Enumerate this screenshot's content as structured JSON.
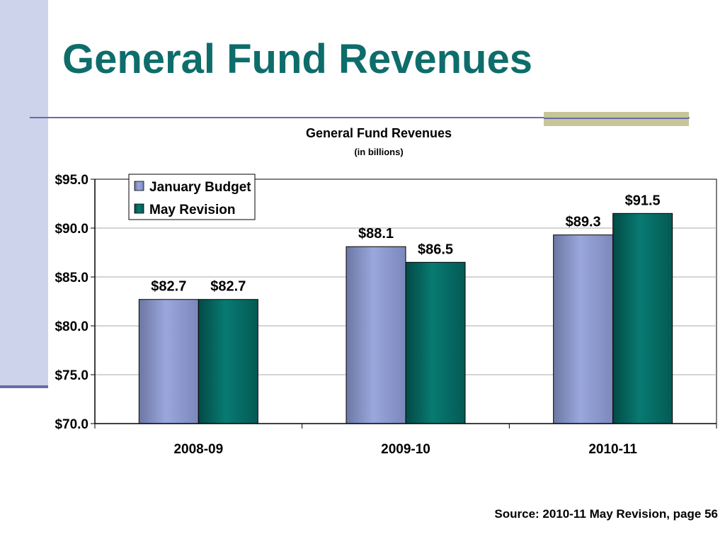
{
  "slide": {
    "title": "General Fund Revenues",
    "source": "Source: 2010-11 May Revision, page 56"
  },
  "colors": {
    "title": "#0e6d6b",
    "january_budget": "#8e9bd0",
    "may_revision": "#046a62",
    "left_band": "#cdd3ea",
    "rule": "#6a6aa8",
    "rule_accent": "#c6c698"
  },
  "chart_data": {
    "type": "bar",
    "title": "General Fund Revenues",
    "subtitle": "(in billions)",
    "xlabel": "",
    "ylabel": "",
    "categories": [
      "2008-09",
      "2009-10",
      "2010-11"
    ],
    "series": [
      {
        "name": "January Budget",
        "values": [
          82.7,
          88.1,
          89.3
        ],
        "labels": [
          "$82.7",
          "$88.1",
          "$89.3"
        ]
      },
      {
        "name": "May Revision",
        "values": [
          82.7,
          86.5,
          91.5
        ],
        "labels": [
          "$82.7",
          "$86.5",
          "$91.5"
        ]
      }
    ],
    "ylim": [
      70,
      95
    ],
    "yticks": [
      95,
      90,
      85,
      80,
      75,
      70
    ],
    "ytick_labels": [
      "$95.0",
      "$90.0",
      "$85.0",
      "$80.0",
      "$75.0",
      "$70.0"
    ],
    "grid": true,
    "legend_position": "top-left"
  }
}
